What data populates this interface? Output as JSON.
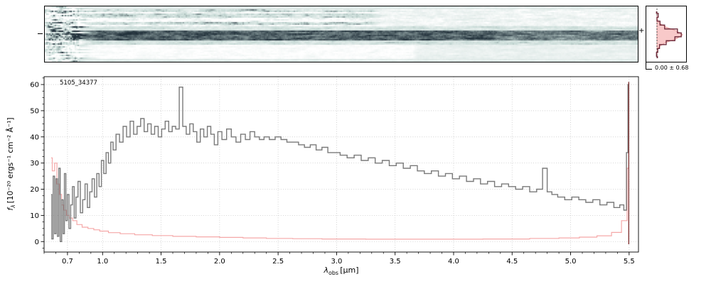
{
  "figure": {
    "object_id": "5105_34377",
    "profile_stat": "0.00 ± 0.68",
    "xlabel": {
      "symbol": "λ",
      "subscript": "obs",
      "unit": "[μm]"
    },
    "ylabel": {
      "symbol": "f",
      "subscript": "λ",
      "unit": "[10⁻²⁰ ergs⁻¹ cm⁻² Å⁻¹]"
    }
  },
  "chart_data": [
    {
      "name": "spectrum-2d",
      "type": "heatmap",
      "title": "2D rectified spectrum with dark continuum trace",
      "x_range_um": [
        0.5,
        5.58
      ],
      "trace_center_marked": true,
      "colors": {
        "dark": "#22313b",
        "mid": "#c7dad6",
        "light": "#ffffff"
      }
    },
    {
      "name": "spectrum-1d",
      "type": "line",
      "xlim": [
        0.5,
        5.58
      ],
      "ylim": [
        -4,
        63
      ],
      "xticks": [
        0.7,
        1.0,
        1.5,
        2.0,
        2.5,
        3.0,
        3.5,
        4.0,
        4.5,
        5.0,
        5.5
      ],
      "yticks": [
        0,
        10,
        20,
        30,
        40,
        50,
        60
      ],
      "x_minor_step": 0.1,
      "y_minor_step": 2.5,
      "grid": true,
      "series": [
        {
          "name": "flux",
          "color": "#7a7a7a",
          "style": "steps-mid",
          "points": [
            [
              0.56,
              18
            ],
            [
              0.572,
              1
            ],
            [
              0.584,
              25
            ],
            [
              0.596,
              3
            ],
            [
              0.608,
              24
            ],
            [
              0.62,
              2
            ],
            [
              0.632,
              28
            ],
            [
              0.644,
              0
            ],
            [
              0.656,
              16
            ],
            [
              0.668,
              3
            ],
            [
              0.68,
              26
            ],
            [
              0.692,
              8
            ],
            [
              0.705,
              18
            ],
            [
              0.72,
              5
            ],
            [
              0.735,
              14
            ],
            [
              0.75,
              21
            ],
            [
              0.765,
              9
            ],
            [
              0.78,
              17
            ],
            [
              0.8,
              23
            ],
            [
              0.82,
              11
            ],
            [
              0.84,
              16
            ],
            [
              0.86,
              22
            ],
            [
              0.88,
              13
            ],
            [
              0.9,
              19
            ],
            [
              0.92,
              24
            ],
            [
              0.94,
              17
            ],
            [
              0.96,
              26
            ],
            [
              0.98,
              21
            ],
            [
              1.0,
              31
            ],
            [
              1.02,
              26
            ],
            [
              1.04,
              34
            ],
            [
              1.06,
              30
            ],
            [
              1.08,
              38
            ],
            [
              1.1,
              35
            ],
            [
              1.13,
              41
            ],
            [
              1.16,
              38
            ],
            [
              1.19,
              44
            ],
            [
              1.22,
              40
            ],
            [
              1.25,
              46
            ],
            [
              1.28,
              41
            ],
            [
              1.31,
              44
            ],
            [
              1.34,
              47
            ],
            [
              1.37,
              42
            ],
            [
              1.4,
              45
            ],
            [
              1.43,
              41
            ],
            [
              1.46,
              44
            ],
            [
              1.49,
              40
            ],
            [
              1.52,
              43
            ],
            [
              1.55,
              46
            ],
            [
              1.58,
              42
            ],
            [
              1.61,
              44
            ],
            [
              1.64,
              43
            ],
            [
              1.67,
              59
            ],
            [
              1.7,
              44
            ],
            [
              1.73,
              41
            ],
            [
              1.76,
              45
            ],
            [
              1.79,
              42
            ],
            [
              1.82,
              38
            ],
            [
              1.85,
              43
            ],
            [
              1.88,
              40
            ],
            [
              1.91,
              44
            ],
            [
              1.94,
              41
            ],
            [
              1.97,
              37
            ],
            [
              2.0,
              42
            ],
            [
              2.04,
              39
            ],
            [
              2.08,
              43
            ],
            [
              2.12,
              40
            ],
            [
              2.16,
              38
            ],
            [
              2.2,
              41
            ],
            [
              2.24,
              39
            ],
            [
              2.28,
              42
            ],
            [
              2.32,
              40
            ],
            [
              2.36,
              39
            ],
            [
              2.4,
              40
            ],
            [
              2.45,
              39
            ],
            [
              2.5,
              40
            ],
            [
              2.55,
              39
            ],
            [
              2.6,
              38
            ],
            [
              2.65,
              38
            ],
            [
              2.7,
              37
            ],
            [
              2.75,
              36
            ],
            [
              2.8,
              37
            ],
            [
              2.85,
              35
            ],
            [
              2.9,
              36
            ],
            [
              2.95,
              34
            ],
            [
              3.0,
              34
            ],
            [
              3.06,
              33
            ],
            [
              3.12,
              32
            ],
            [
              3.18,
              33
            ],
            [
              3.24,
              31
            ],
            [
              3.3,
              32
            ],
            [
              3.36,
              30
            ],
            [
              3.42,
              31
            ],
            [
              3.48,
              29
            ],
            [
              3.54,
              30
            ],
            [
              3.6,
              28
            ],
            [
              3.66,
              29
            ],
            [
              3.72,
              27
            ],
            [
              3.78,
              26
            ],
            [
              3.84,
              27
            ],
            [
              3.9,
              25
            ],
            [
              3.96,
              26
            ],
            [
              4.02,
              24
            ],
            [
              4.08,
              25
            ],
            [
              4.14,
              23
            ],
            [
              4.2,
              24
            ],
            [
              4.26,
              22
            ],
            [
              4.32,
              23
            ],
            [
              4.38,
              21
            ],
            [
              4.44,
              22
            ],
            [
              4.5,
              21
            ],
            [
              4.56,
              20
            ],
            [
              4.62,
              21
            ],
            [
              4.68,
              19
            ],
            [
              4.74,
              20
            ],
            [
              4.78,
              28
            ],
            [
              4.82,
              19
            ],
            [
              4.86,
              18
            ],
            [
              4.92,
              17
            ],
            [
              4.98,
              16
            ],
            [
              5.04,
              17
            ],
            [
              5.1,
              16
            ],
            [
              5.16,
              15
            ],
            [
              5.22,
              16
            ],
            [
              5.28,
              14
            ],
            [
              5.34,
              15
            ],
            [
              5.4,
              13
            ],
            [
              5.44,
              14
            ],
            [
              5.47,
              12
            ],
            [
              5.485,
              34
            ],
            [
              5.495,
              60
            ]
          ]
        },
        {
          "name": "uncertainty",
          "color": "#f5a8a8",
          "style": "steps-mid",
          "points": [
            [
              0.56,
              32
            ],
            [
              0.58,
              27
            ],
            [
              0.6,
              30
            ],
            [
              0.62,
              22
            ],
            [
              0.64,
              18
            ],
            [
              0.66,
              14
            ],
            [
              0.68,
              12
            ],
            [
              0.7,
              10
            ],
            [
              0.73,
              9
            ],
            [
              0.76,
              8
            ],
            [
              0.8,
              6.5
            ],
            [
              0.85,
              5.5
            ],
            [
              0.9,
              5
            ],
            [
              0.95,
              4.5
            ],
            [
              1.0,
              4
            ],
            [
              1.1,
              3.4
            ],
            [
              1.2,
              3
            ],
            [
              1.35,
              2.6
            ],
            [
              1.5,
              2.3
            ],
            [
              1.7,
              2
            ],
            [
              1.9,
              1.8
            ],
            [
              2.1,
              1.6
            ],
            [
              2.3,
              1.4
            ],
            [
              2.5,
              1.2
            ],
            [
              2.75,
              1.1
            ],
            [
              3.0,
              1
            ],
            [
              3.5,
              0.9
            ],
            [
              4.0,
              0.9
            ],
            [
              4.5,
              1
            ],
            [
              4.8,
              1.2
            ],
            [
              5.0,
              1.4
            ],
            [
              5.15,
              1.7
            ],
            [
              5.3,
              2.2
            ],
            [
              5.4,
              3.5
            ],
            [
              5.47,
              8
            ],
            [
              5.495,
              28
            ]
          ]
        }
      ],
      "annotations": {
        "object_id": "5105_34377",
        "right_edge_artifact_x": 5.497,
        "artifact_color": "#7e2f2f"
      }
    },
    {
      "name": "spatial-profile",
      "type": "area",
      "orientation": "horizontal",
      "center": 0.0,
      "sigma": 0.68,
      "label": "0.00 ± 0.68",
      "positions": [
        -3,
        -2.5,
        -2,
        -1.5,
        -1,
        -0.5,
        0,
        0.5,
        1,
        1.5,
        2,
        2.5,
        3
      ],
      "model": [
        0,
        0.001,
        0.013,
        0.088,
        0.34,
        0.76,
        1.0,
        0.76,
        0.34,
        0.088,
        0.013,
        0.001,
        0
      ],
      "observed": [
        0.02,
        -0.02,
        0.03,
        0.1,
        0.36,
        0.7,
        0.95,
        0.8,
        0.3,
        0.12,
        0,
        0.05,
        -0.02
      ],
      "model_fill": "#f6bcbc",
      "model_edge": "#eba3a3",
      "line_color": "#6b2737",
      "zero_line": true
    }
  ]
}
